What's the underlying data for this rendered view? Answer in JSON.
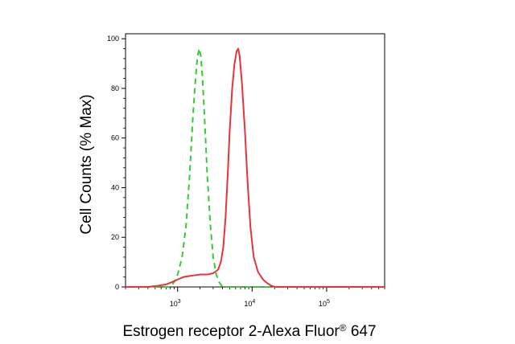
{
  "chart_data": {
    "type": "line",
    "title": "",
    "xlabel": "Estrogen receptor 2-Alexa Fluor",
    "xlabel_sup": "®",
    "xlabel_suffix": " 647",
    "ylabel": "Cell Counts (% Max)",
    "xscale": "log",
    "xlim": [
      200,
      600000
    ],
    "ylim": [
      0,
      102
    ],
    "x_ticks": [
      {
        "value": 1000,
        "base": "10",
        "exp": "3"
      },
      {
        "value": 10000,
        "base": "10",
        "exp": "4"
      },
      {
        "value": 100000,
        "base": "10",
        "exp": "5"
      }
    ],
    "y_ticks": [
      {
        "value": 0,
        "label": "0"
      },
      {
        "value": 20,
        "label": "20"
      },
      {
        "value": 40,
        "label": "40"
      },
      {
        "value": 60,
        "label": "60"
      },
      {
        "value": 80,
        "label": "80"
      },
      {
        "value": 100,
        "label": "100"
      }
    ],
    "grid": false,
    "legend": "none",
    "series": [
      {
        "color": "#33cc33",
        "style": "dashed",
        "points": [
          [
            200,
            0
          ],
          [
            500,
            0
          ],
          [
            800,
            0
          ],
          [
            900,
            2
          ],
          [
            1000,
            5
          ],
          [
            1150,
            12
          ],
          [
            1300,
            25
          ],
          [
            1450,
            45
          ],
          [
            1600,
            68
          ],
          [
            1750,
            85
          ],
          [
            1850,
            93
          ],
          [
            1950,
            96
          ],
          [
            2050,
            93
          ],
          [
            2150,
            85
          ],
          [
            2300,
            68
          ],
          [
            2500,
            45
          ],
          [
            2750,
            25
          ],
          [
            3000,
            12
          ],
          [
            3300,
            5
          ],
          [
            3600,
            2
          ],
          [
            4000,
            0
          ],
          [
            8000,
            0
          ],
          [
            10000,
            0
          ],
          [
            600000,
            0
          ]
        ]
      },
      {
        "color": "#e8333c",
        "style": "solid",
        "points": [
          [
            200,
            0
          ],
          [
            400,
            0
          ],
          [
            550,
            0.5
          ],
          [
            700,
            1
          ],
          [
            850,
            2
          ],
          [
            1000,
            3
          ],
          [
            1200,
            4
          ],
          [
            1500,
            4.5
          ],
          [
            2000,
            5
          ],
          [
            2500,
            5
          ],
          [
            3000,
            5.5
          ],
          [
            3500,
            7
          ],
          [
            3800,
            10
          ],
          [
            4100,
            16
          ],
          [
            4400,
            28
          ],
          [
            4700,
            45
          ],
          [
            5000,
            63
          ],
          [
            5400,
            80
          ],
          [
            5800,
            90
          ],
          [
            6200,
            95
          ],
          [
            6500,
            96
          ],
          [
            6800,
            93
          ],
          [
            7300,
            82
          ],
          [
            8000,
            63
          ],
          [
            8700,
            42
          ],
          [
            9500,
            24
          ],
          [
            10500,
            12
          ],
          [
            12000,
            6
          ],
          [
            14000,
            3
          ],
          [
            16000,
            1.5
          ],
          [
            18000,
            0.5
          ],
          [
            20000,
            0
          ],
          [
            600000,
            0
          ]
        ]
      }
    ]
  }
}
